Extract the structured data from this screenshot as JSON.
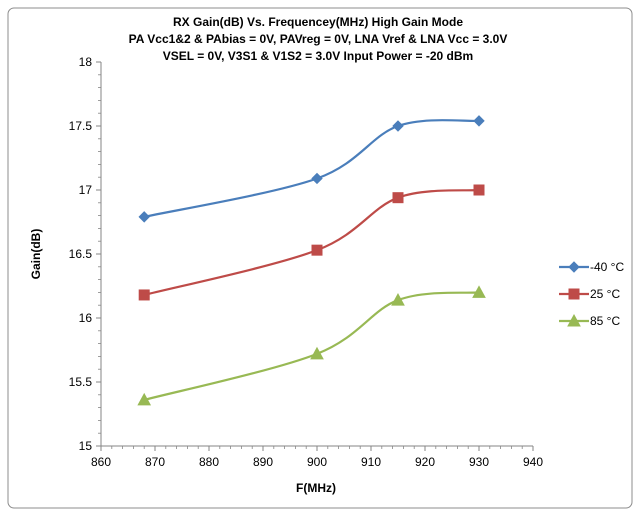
{
  "chart_data": {
    "type": "line",
    "title": "RX Gain(dB)  Vs. Frequencey(MHz) High Gain  Mode",
    "subtitle_lines": [
      "PA Vcc1&2 & PAbias = 0V, PAVreg = 0V, LNA Vref & LNA Vcc = 3.0V",
      "VSEL = 0V, V3S1 & V1S2 = 3.0V Input Power = -20 dBm"
    ],
    "xlabel": "F(MHz)",
    "ylabel": "Gain(dB)",
    "xlim": [
      860,
      940
    ],
    "ylim": [
      15,
      18
    ],
    "x_ticks": [
      860,
      870,
      880,
      890,
      900,
      910,
      920,
      930,
      940
    ],
    "y_ticks": [
      15,
      15.5,
      16,
      16.5,
      17,
      17.5,
      18
    ],
    "x_tick_labels": [
      "860",
      "870",
      "880",
      "890",
      "900",
      "910",
      "920",
      "930",
      "940"
    ],
    "y_tick_labels": [
      "15",
      "15.5",
      "16",
      "16.5",
      "17",
      "17.5",
      "18"
    ],
    "grid": false,
    "legend_position": "right",
    "series": [
      {
        "name": "-40 °C",
        "color": "#4A7EBB",
        "marker": "diamond",
        "x": [
          868,
          900,
          915,
          930
        ],
        "y": [
          16.79,
          17.09,
          17.5,
          17.54
        ]
      },
      {
        "name": "25 °C",
        "color": "#BE4B48",
        "marker": "square",
        "x": [
          868,
          900,
          915,
          930
        ],
        "y": [
          16.18,
          16.53,
          16.94,
          17.0
        ]
      },
      {
        "name": "85 °C",
        "color": "#98B954",
        "marker": "triangle",
        "x": [
          868,
          900,
          915,
          930
        ],
        "y": [
          15.36,
          15.72,
          16.14,
          16.2
        ]
      }
    ]
  }
}
